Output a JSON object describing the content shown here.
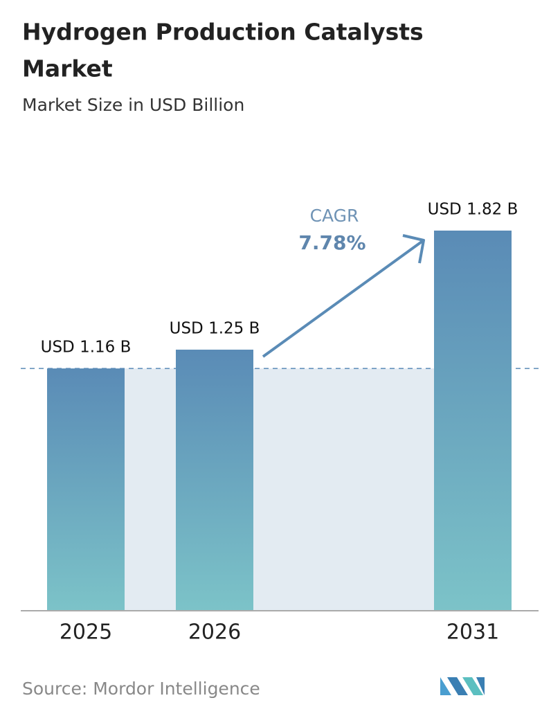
{
  "chart_data": {
    "type": "bar",
    "title": [
      "Hydrogen Production Catalysts",
      "Market"
    ],
    "subtitle": "Market Size in USD Billion",
    "categories": [
      "2025",
      "2026",
      "2031"
    ],
    "values": [
      1.16,
      1.25,
      1.82
    ],
    "value_labels": [
      "USD 1.16 B",
      "USD 1.25 B",
      "USD 1.82 B"
    ],
    "annotations": {
      "cagr_label": "CAGR",
      "cagr_value": "7.78%"
    },
    "source": "Source: Mordor Intelligence",
    "colors": [
      "#5a8bb6",
      "#7cc3c8"
    ]
  }
}
